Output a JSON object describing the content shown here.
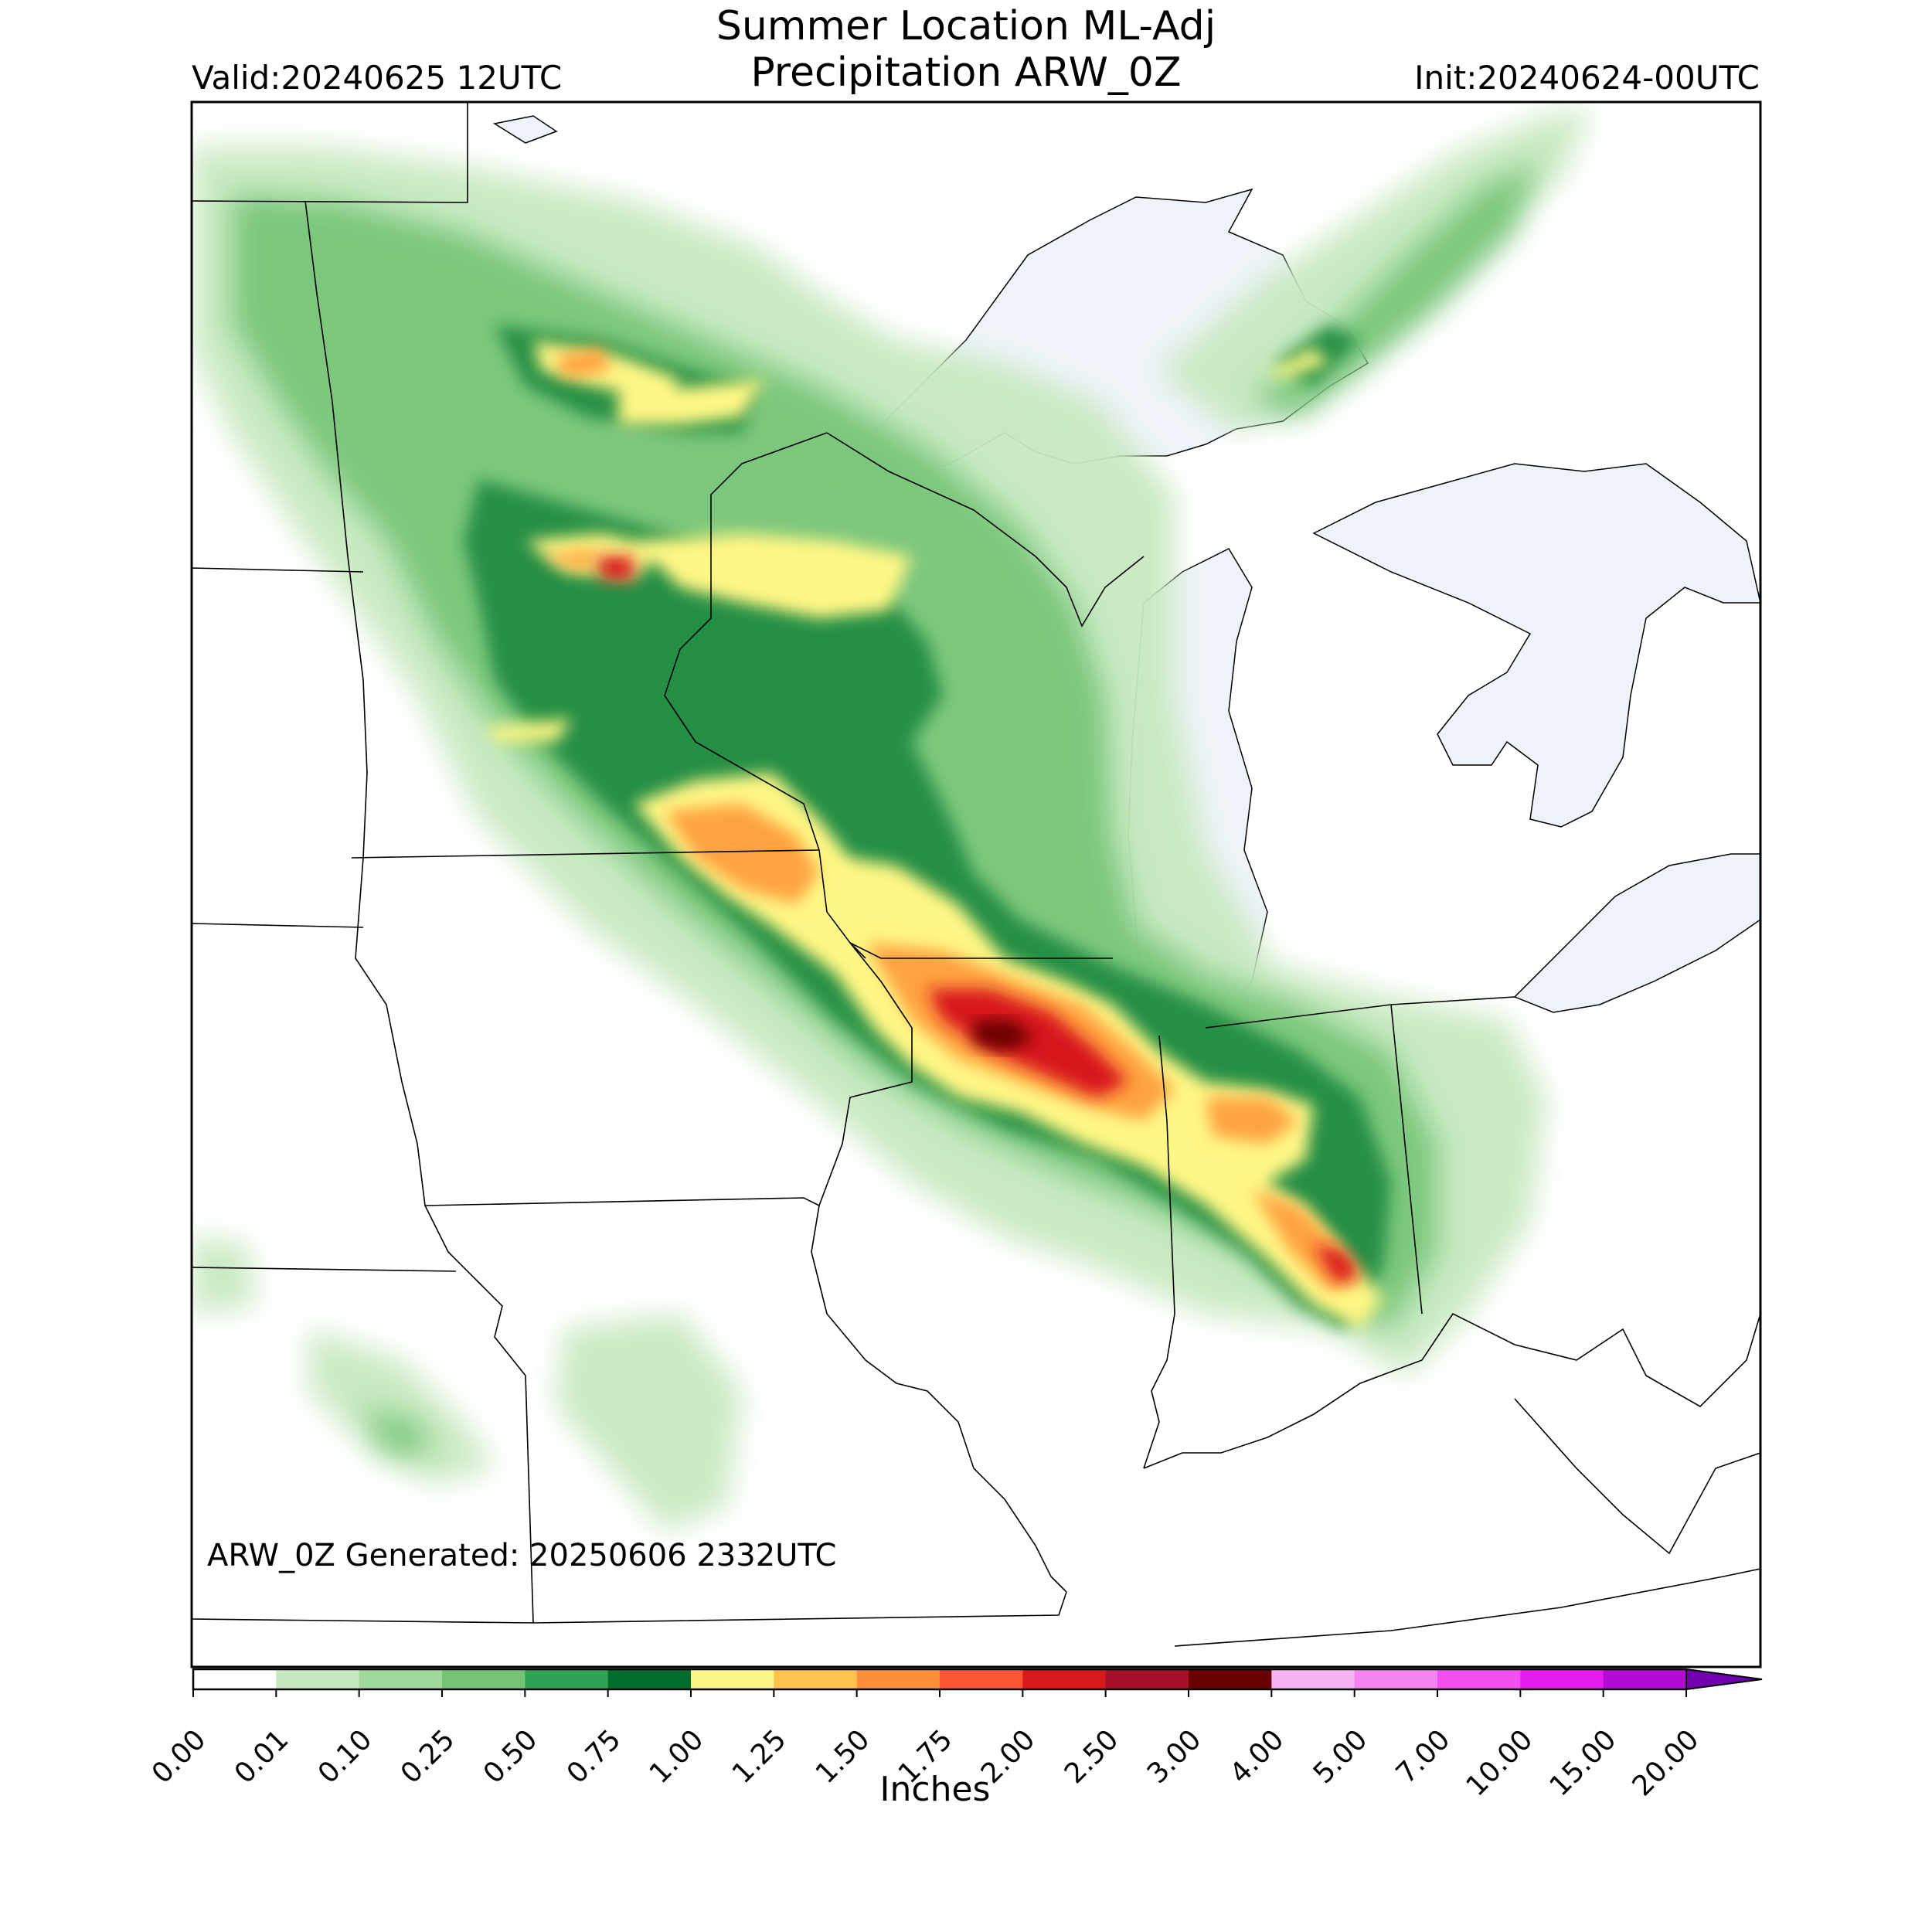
{
  "header": {
    "title_line1": "Summer Location ML-Adj",
    "title_line2": "Precipitation ARW_0Z",
    "valid": "Valid:20240625 12UTC",
    "init": "Init:20240624-00UTC"
  },
  "map": {
    "generated_note": "ARW_0Z Generated: 20250606 2332UTC",
    "lake_color": "#eef3f9",
    "precip_max_label": "3.00"
  },
  "colorbar": {
    "label": "Inches",
    "ticks": [
      "0.00",
      "0.01",
      "0.10",
      "0.25",
      "0.50",
      "0.75",
      "1.00",
      "1.25",
      "1.50",
      "1.75",
      "2.00",
      "2.50",
      "3.00",
      "4.00",
      "5.00",
      "7.00",
      "10.00",
      "15.00",
      "20.00"
    ],
    "colors": [
      "#ffffff",
      "#c7e9c0",
      "#a1d99b",
      "#74c476",
      "#31a354",
      "#006d2c",
      "#fff785",
      "#ffc24f",
      "#ff8f38",
      "#ff5533",
      "#d7191c",
      "#a50f28",
      "#6b0000",
      "#f7b4f5",
      "#f683f2",
      "#f24ff0",
      "#e41cec",
      "#b20bd6"
    ],
    "extend_color": "#7000b0"
  }
}
